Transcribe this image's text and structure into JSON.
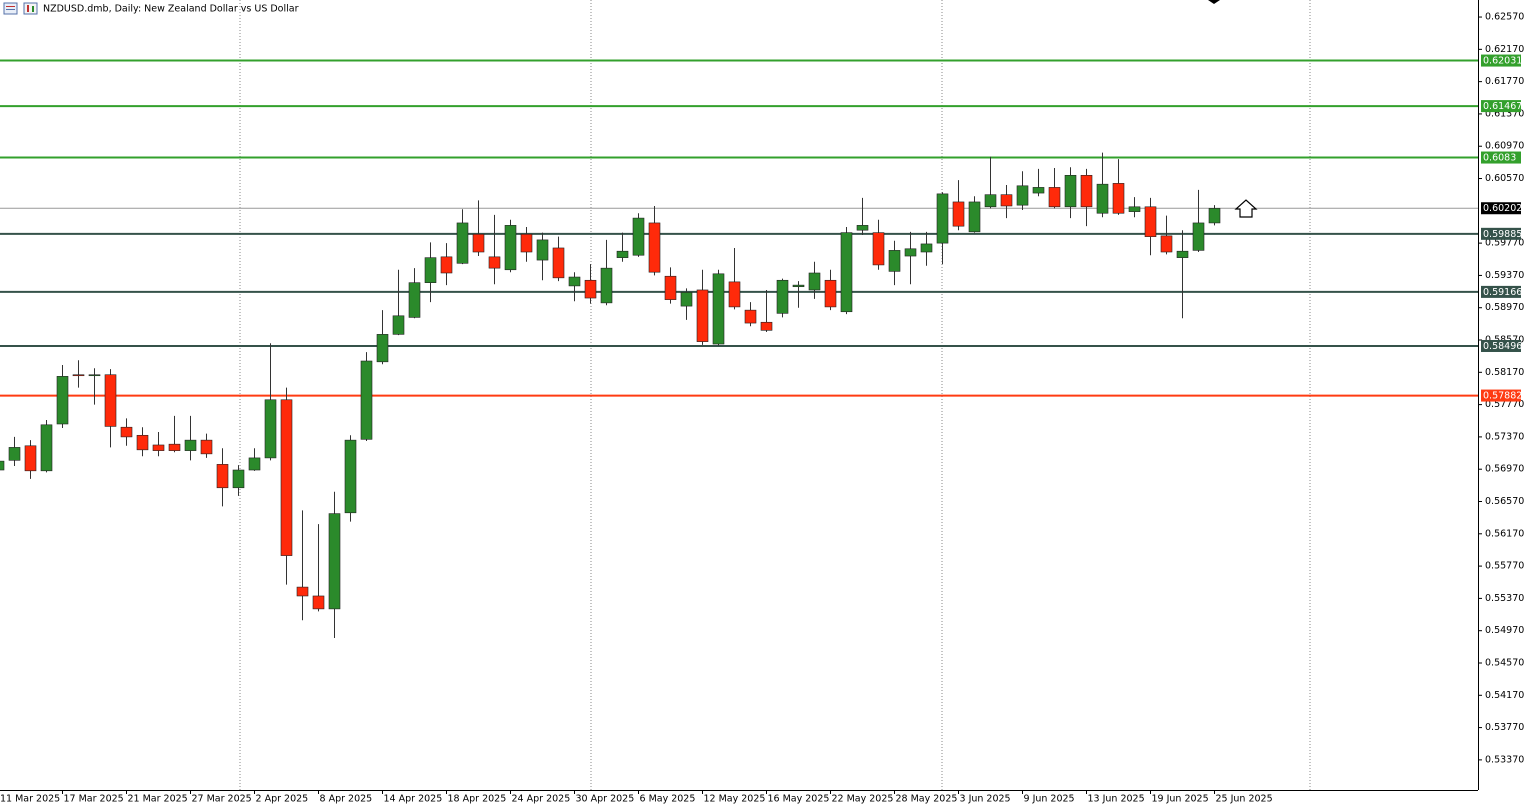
{
  "chart_data": {
    "type": "candlestick",
    "title": "NZDUSD.dmb, Daily:  New Zealand Dollar vs US Dollar",
    "categories": [
      "11 Mar 2025",
      null,
      null,
      null,
      "17 Mar 2025",
      null,
      null,
      null,
      "21 Mar 2025",
      null,
      null,
      null,
      "27 Mar 2025",
      null,
      null,
      null,
      "2 Apr 2025",
      null,
      null,
      null,
      "8 Apr 2025",
      null,
      null,
      null,
      "14 Apr 2025",
      null,
      null,
      null,
      "18 Apr 2025",
      null,
      null,
      null,
      "24 Apr 2025",
      null,
      null,
      null,
      "30 Apr 2025",
      null,
      null,
      null,
      "6 May 2025",
      null,
      null,
      null,
      "12 May 2025",
      null,
      null,
      null,
      "16 May 2025",
      null,
      null,
      null,
      "22 May 2025",
      null,
      null,
      null,
      "28 May 2025",
      null,
      null,
      null,
      "3 Jun 2025",
      null,
      null,
      null,
      "9 Jun 2025",
      null,
      null,
      null,
      "13 Jun 2025",
      null,
      null,
      null,
      "19 Jun 2025",
      null,
      null,
      null,
      "25 Jun 2025"
    ],
    "open": [
      0.5696,
      0.5708,
      0.5726,
      0.5695,
      0.5753,
      0.5814,
      0.5813,
      0.5814,
      0.5749,
      0.5739,
      0.5727,
      0.5728,
      0.572,
      0.5733,
      0.5703,
      0.5674,
      0.5696,
      0.5711,
      0.5783,
      0.5551,
      0.554,
      0.5524,
      0.5643,
      0.5734,
      0.583,
      0.5864,
      0.5885,
      0.5928,
      0.596,
      0.5952,
      0.5988,
      0.596,
      0.5944,
      0.5988,
      0.5956,
      0.5971,
      0.5924,
      0.5931,
      0.5903,
      0.5959,
      0.5962,
      0.6002,
      0.5936,
      0.5899,
      0.5919,
      0.5852,
      0.5929,
      0.5894,
      0.5879,
      0.589,
      0.5923,
      0.5919,
      0.5931,
      0.5892,
      0.5993,
      0.599,
      0.5942,
      0.5961,
      0.5966,
      0.5977,
      0.6028,
      0.5991,
      0.6022,
      0.6037,
      0.6024,
      0.6039,
      0.6046,
      0.6022,
      0.6061,
      0.6014,
      0.6051,
      0.6016,
      0.6022,
      0.5986,
      0.5959,
      0.5968,
      0.6002
    ],
    "high": [
      0.5715,
      0.5737,
      0.5733,
      0.5758,
      0.5826,
      0.5832,
      0.5822,
      0.5821,
      0.576,
      0.5749,
      0.5743,
      0.5763,
      0.5763,
      0.5741,
      0.5723,
      0.5702,
      0.5723,
      0.5853,
      0.5798,
      0.5646,
      0.5629,
      0.5669,
      0.5739,
      0.5842,
      0.5894,
      0.5944,
      0.5946,
      0.5978,
      0.5977,
      0.6019,
      0.603,
      0.6012,
      0.6006,
      0.5997,
      0.599,
      0.5985,
      0.5941,
      0.5951,
      0.5981,
      0.599,
      0.6014,
      0.6023,
      0.5947,
      0.5921,
      0.5944,
      0.5944,
      0.5971,
      0.5904,
      0.5919,
      0.5933,
      0.593,
      0.5954,
      0.5944,
      0.5997,
      0.6033,
      0.6006,
      0.598,
      0.5991,
      0.5991,
      0.604,
      0.6055,
      0.6035,
      0.6084,
      0.6049,
      0.6066,
      0.6069,
      0.607,
      0.6071,
      0.6069,
      0.6089,
      0.6081,
      0.6034,
      0.6033,
      0.6011,
      0.5993,
      0.6043,
      0.6024
    ],
    "low": [
      0.569,
      0.5701,
      0.5685,
      0.5693,
      0.5748,
      0.5798,
      0.5777,
      0.5724,
      0.5726,
      0.5713,
      0.5713,
      0.5718,
      0.5708,
      0.5711,
      0.5651,
      0.5664,
      0.5695,
      0.5708,
      0.5554,
      0.551,
      0.5521,
      0.5488,
      0.5632,
      0.5732,
      0.5827,
      0.5863,
      0.5884,
      0.5904,
      0.5925,
      0.5951,
      0.5961,
      0.5926,
      0.5941,
      0.5954,
      0.5931,
      0.593,
      0.5905,
      0.5902,
      0.59,
      0.5954,
      0.596,
      0.5937,
      0.5902,
      0.5882,
      0.5851,
      0.585,
      0.5895,
      0.5874,
      0.5867,
      0.5885,
      0.5897,
      0.5908,
      0.5894,
      0.5889,
      0.5987,
      0.5944,
      0.5925,
      0.5926,
      0.5949,
      0.5951,
      0.5993,
      0.599,
      0.602,
      0.6008,
      0.6018,
      0.6035,
      0.602,
      0.6008,
      0.5998,
      0.6009,
      0.6012,
      0.6009,
      0.5962,
      0.5963,
      0.5884,
      0.5966,
      0.5999
    ],
    "close": [
      0.5707,
      0.5724,
      0.5695,
      0.5752,
      0.5812,
      0.5813,
      0.5814,
      0.575,
      0.5737,
      0.5721,
      0.572,
      0.572,
      0.5733,
      0.5716,
      0.5674,
      0.5696,
      0.5711,
      0.5783,
      0.559,
      0.554,
      0.5524,
      0.5642,
      0.5733,
      0.5831,
      0.5864,
      0.5887,
      0.5928,
      0.5959,
      0.594,
      0.6002,
      0.5966,
      0.5946,
      0.5999,
      0.5966,
      0.5981,
      0.5934,
      0.5935,
      0.5909,
      0.5946,
      0.5967,
      0.6008,
      0.5941,
      0.5907,
      0.5916,
      0.5855,
      0.5939,
      0.5898,
      0.5878,
      0.5869,
      0.5931,
      0.5925,
      0.594,
      0.5898,
      0.599,
      0.5999,
      0.595,
      0.5968,
      0.597,
      0.5976,
      0.6038,
      0.5998,
      0.6028,
      0.6037,
      0.6023,
      0.6048,
      0.6046,
      0.6022,
      0.6061,
      0.6022,
      0.605,
      0.6014,
      0.6022,
      0.5985,
      0.5966,
      0.5967,
      0.6002,
      0.602
    ],
    "up_color": "#2b8a2b",
    "down_color": "#ff2a0a",
    "ylim": [
      0.52997,
      0.62781
    ],
    "yticks": [
      {
        "value": 0.6257,
        "label": "0.62570"
      },
      {
        "value": 0.6217,
        "label": "0.62170"
      },
      {
        "value": 0.6177,
        "label": "0.61770"
      },
      {
        "value": 0.6137,
        "label": "0.61370"
      },
      {
        "value": 0.6097,
        "label": "0.60970"
      },
      {
        "value": 0.6057,
        "label": "0.60570"
      },
      {
        "value": 0.5977,
        "label": "0.59770"
      },
      {
        "value": 0.5937,
        "label": "0.59370"
      },
      {
        "value": 0.5897,
        "label": "0.58970"
      },
      {
        "value": 0.5857,
        "label": "0.58570"
      },
      {
        "value": 0.5817,
        "label": "0.58170"
      },
      {
        "value": 0.5777,
        "label": "0.57770"
      },
      {
        "value": 0.5737,
        "label": "0.57370"
      },
      {
        "value": 0.5697,
        "label": "0.56970"
      },
      {
        "value": 0.5657,
        "label": "0.56570"
      },
      {
        "value": 0.5617,
        "label": "0.56170"
      },
      {
        "value": 0.5577,
        "label": "0.55770"
      },
      {
        "value": 0.5537,
        "label": "0.55370"
      },
      {
        "value": 0.5497,
        "label": "0.54970"
      },
      {
        "value": 0.5457,
        "label": "0.54570"
      },
      {
        "value": 0.5417,
        "label": "0.54170"
      },
      {
        "value": 0.5377,
        "label": "0.53770"
      },
      {
        "value": 0.5337,
        "label": "0.53370"
      }
    ],
    "levels": [
      {
        "value": 0.62031,
        "color": "#33a02c"
      },
      {
        "value": 0.61467,
        "color": "#33a02c"
      },
      {
        "value": 0.6083,
        "color": "#33a02c"
      },
      {
        "value": 0.59885,
        "color": "#35524a"
      },
      {
        "value": 0.59166,
        "color": "#35524a"
      },
      {
        "value": 0.58496,
        "color": "#35524a"
      },
      {
        "value": 0.57882,
        "color": "#ff3b12"
      }
    ],
    "current_price": {
      "value": 0.60202,
      "color": "#000000"
    }
  }
}
